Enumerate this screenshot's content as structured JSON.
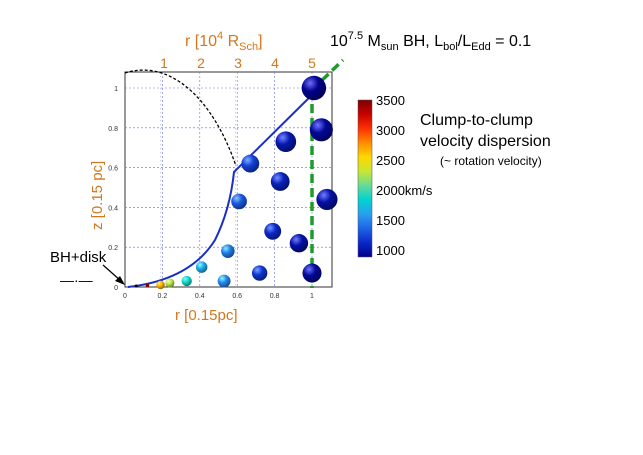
{
  "title": {
    "prefix": "10",
    "exponent": "7.5",
    "m": " M",
    "m_sub": "sun",
    "mid": " BH, L",
    "l1_sub": "bol",
    "slash": "/L",
    "l2_sub": "Edd",
    "suffix": " = 0.1"
  },
  "top_axis": {
    "label_main": "r [10",
    "label_sup": "4",
    "label_r": " R",
    "label_sub": "Sch",
    "label_close": "]",
    "ticks": [
      "1",
      "2",
      "3",
      "4",
      "5"
    ]
  },
  "bottom_axis": {
    "label": "r [0.15pc]",
    "ticks": [
      "0",
      "0.2",
      "0.4",
      "0.6",
      "0.8",
      "1"
    ]
  },
  "left_axis": {
    "label": "z [0.15 pc]",
    "ticks": [
      "0",
      "0.2",
      "0.4",
      "0.6",
      "0.8",
      "1"
    ]
  },
  "colorbar": {
    "ticks": [
      "3500",
      "3000",
      "2500",
      "2000km/s",
      "1500",
      "1000"
    ],
    "colors": [
      "#7f0000",
      "#c80000",
      "#ff3000",
      "#ff8c00",
      "#ffd700",
      "#c8e632",
      "#64dc96",
      "#00d2d2",
      "#28a0f0",
      "#1e64e6",
      "#0a28c8",
      "#00008c"
    ]
  },
  "dispersion_label": {
    "line1": "Clump-to-clump",
    "line2": "velocity dispersion",
    "line3": "(~ rotation velocity)"
  },
  "bh_label": {
    "text": "BH+disk",
    "marker": "—·—"
  },
  "clumps": [
    {
      "r": 0.19,
      "z": 0.01,
      "v": 2900
    },
    {
      "r": 0.24,
      "z": 0.02,
      "v": 2450
    },
    {
      "r": 0.33,
      "z": 0.03,
      "v": 2050
    },
    {
      "r": 0.41,
      "z": 0.1,
      "v": 1800
    },
    {
      "r": 0.53,
      "z": 0.03,
      "v": 1650
    },
    {
      "r": 0.55,
      "z": 0.18,
      "v": 1600
    },
    {
      "r": 0.61,
      "z": 0.43,
      "v": 1450
    },
    {
      "r": 0.67,
      "z": 0.62,
      "v": 1350
    },
    {
      "r": 0.72,
      "z": 0.07,
      "v": 1300
    },
    {
      "r": 0.79,
      "z": 0.28,
      "v": 1250
    },
    {
      "r": 0.83,
      "z": 0.53,
      "v": 1200
    },
    {
      "r": 0.86,
      "z": 0.73,
      "v": 1150
    },
    {
      "r": 0.93,
      "z": 0.22,
      "v": 1100
    },
    {
      "r": 1.0,
      "z": 0.07,
      "v": 1050
    },
    {
      "r": 1.01,
      "z": 1.0,
      "v": 1000
    },
    {
      "r": 1.05,
      "z": 0.79,
      "v": 1050
    },
    {
      "r": 1.08,
      "z": 0.44,
      "v": 1100
    }
  ]
}
